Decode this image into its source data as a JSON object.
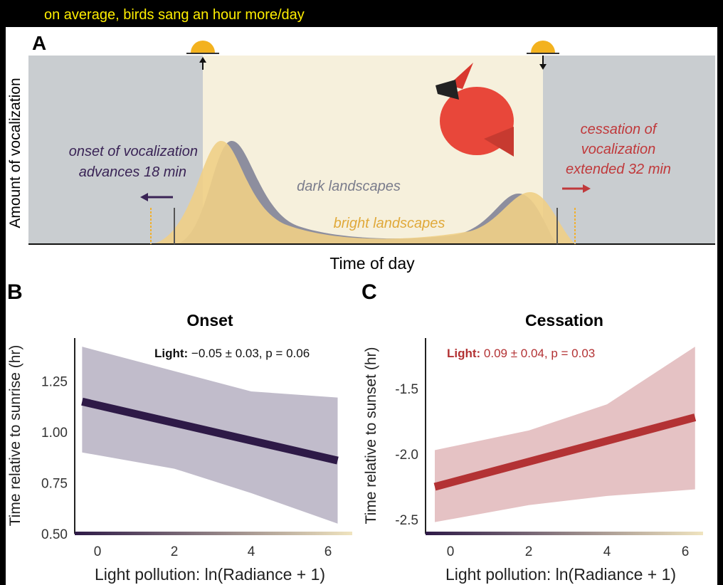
{
  "caption": "on average, birds sang an hour more/day",
  "panel_a": {
    "letter": "A",
    "ylabel": "Amount of vocalization",
    "xlabel": "Time of day",
    "onset_text": [
      "onset of vocalization",
      "advances 18 min"
    ],
    "cessation_text": [
      "cessation of",
      "vocalization",
      "extended 32 min"
    ],
    "dark_label": "dark landscapes",
    "bright_label": "bright landscapes",
    "colors": {
      "night": "#c9cdd0",
      "day": "#f6f0dc",
      "dark": "#8d8e9e",
      "bright": "#f0cf86",
      "onset": "#3a2456",
      "cessation": "#c0393b"
    },
    "icons": [
      "sunrise-icon",
      "sunset-icon",
      "cardinal-bird-image"
    ]
  },
  "chart_data": [
    {
      "type": "line",
      "letter": "B",
      "title": "Onset",
      "annotation_bold": "Light:",
      "annotation": " −0.05 ± 0.03, p = 0.06",
      "xlabel": "Light pollution: ln(Radiance + 1)",
      "ylabel": "Time relative to sunrise (hr)",
      "xlim": [
        -0.6,
        6.6
      ],
      "ylim": [
        0.5,
        1.5
      ],
      "xticks": [
        0,
        2,
        4,
        6
      ],
      "yticks": [
        "0.50",
        "0.75",
        "1.00",
        "1.25"
      ],
      "line": {
        "x": [
          -0.4,
          6.25
        ],
        "y": [
          1.15,
          0.86
        ]
      },
      "band": {
        "x": [
          -0.4,
          2,
          4,
          6.25
        ],
        "upper": [
          1.42,
          1.3,
          1.2,
          1.17
        ],
        "lower": [
          0.9,
          0.82,
          0.7,
          0.55
        ]
      },
      "color": "#2e1a47",
      "band_color": "#c1bccb",
      "annotation_color": "#111111"
    },
    {
      "type": "line",
      "letter": "C",
      "title": "Cessation",
      "annotation_bold": "Light:",
      "annotation": " 0.09 ± 0.04, p = 0.03",
      "xlabel": "Light pollution: ln(Radiance + 1)",
      "ylabel": "Time relative to sunset (hr)",
      "xlim": [
        -0.65,
        6.6
      ],
      "ylim": [
        -2.61,
        -1.11
      ],
      "xticks": [
        0,
        2,
        4,
        6
      ],
      "yticks": [
        "-1.5",
        "-2.0",
        "-2.5"
      ],
      "line": {
        "x": [
          -0.4,
          6.25
        ],
        "y": [
          -2.25,
          -1.72
        ]
      },
      "band": {
        "x": [
          -0.4,
          2,
          4,
          6.25
        ],
        "upper": [
          -1.97,
          -1.82,
          -1.62,
          -1.18
        ],
        "lower": [
          -2.52,
          -2.39,
          -2.32,
          -2.27
        ]
      },
      "color": "#b33234",
      "band_color": "#e5c2c4",
      "annotation_color": "#b33234"
    }
  ]
}
